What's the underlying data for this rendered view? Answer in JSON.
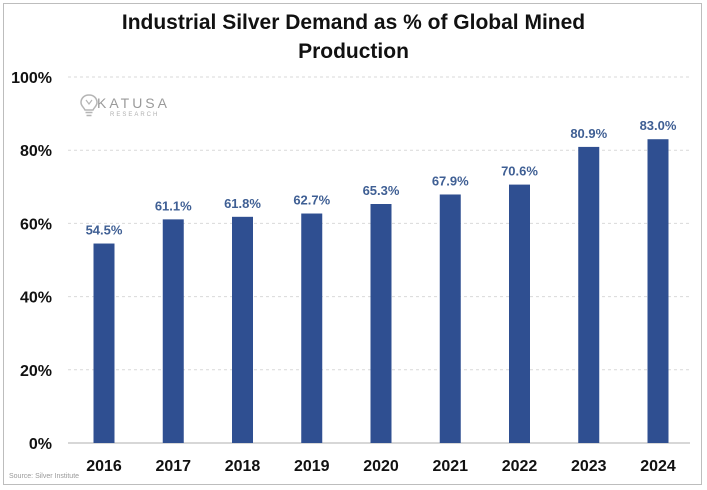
{
  "chart_data": {
    "type": "bar",
    "title_lines": [
      "Industrial Silver Demand as % of Global Mined",
      "Production"
    ],
    "categories": [
      "2016",
      "2017",
      "2018",
      "2019",
      "2020",
      "2021",
      "2022",
      "2023",
      "2024"
    ],
    "values": [
      54.5,
      61.1,
      61.8,
      62.7,
      65.3,
      67.9,
      70.6,
      80.9,
      83.0
    ],
    "data_labels": [
      "54.5%",
      "61.1%",
      "61.8%",
      "62.7%",
      "65.3%",
      "67.9%",
      "70.6%",
      "80.9%",
      "83.0%"
    ],
    "y_ticks": [
      0,
      20,
      40,
      60,
      80,
      100
    ],
    "y_tick_labels": [
      "0%",
      "20%",
      "40%",
      "60%",
      "80%",
      "100%"
    ],
    "ylim": [
      0,
      100
    ],
    "xlabel": "",
    "ylabel": "",
    "grid": "horizontal-dashed",
    "bar_color": "#2f4f91",
    "label_color": "#3f5f94",
    "grid_color": "#d9d9d9",
    "axis_color": "#bfbfbf"
  },
  "branding": {
    "logo_name": "KATUSA",
    "logo_sub": "RESEARCH",
    "logo_icon": "lightbulb-icon"
  },
  "source": "Source: Silver Institute"
}
